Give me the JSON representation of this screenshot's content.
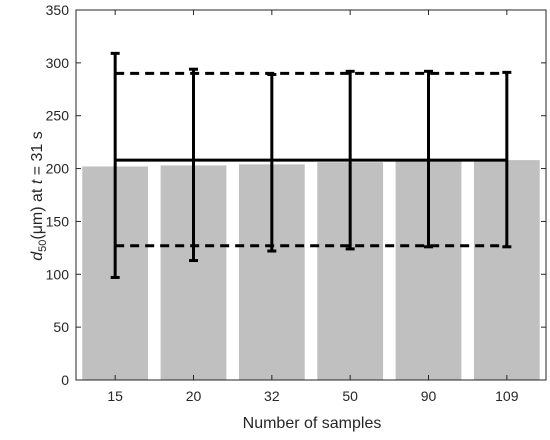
{
  "chart_data": {
    "type": "bar",
    "categories": [
      "15",
      "20",
      "32",
      "50",
      "90",
      "109"
    ],
    "values": [
      202,
      203,
      204,
      206,
      207,
      208
    ],
    "error_bars": {
      "upper": [
        309,
        294,
        289,
        292,
        292,
        291
      ],
      "lower": [
        97,
        113,
        122,
        124,
        126,
        126
      ]
    },
    "reference_lines": {
      "mean": 208,
      "upper_dashed": 290,
      "lower_dashed": 127
    },
    "xlabel": "Number of samples",
    "ylabel": {
      "prefix": "d",
      "subscript": "50",
      "middle": "(μm) at ",
      "var": "t",
      "suffix": " = 31 s"
    },
    "ylim": [
      0,
      350
    ],
    "yticks": [
      0,
      50,
      100,
      150,
      200,
      250,
      300,
      350
    ],
    "grid": false,
    "legend": "none",
    "colors": {
      "bar": "#c0c0c0",
      "line": "#000000",
      "axis": "#262626"
    }
  }
}
